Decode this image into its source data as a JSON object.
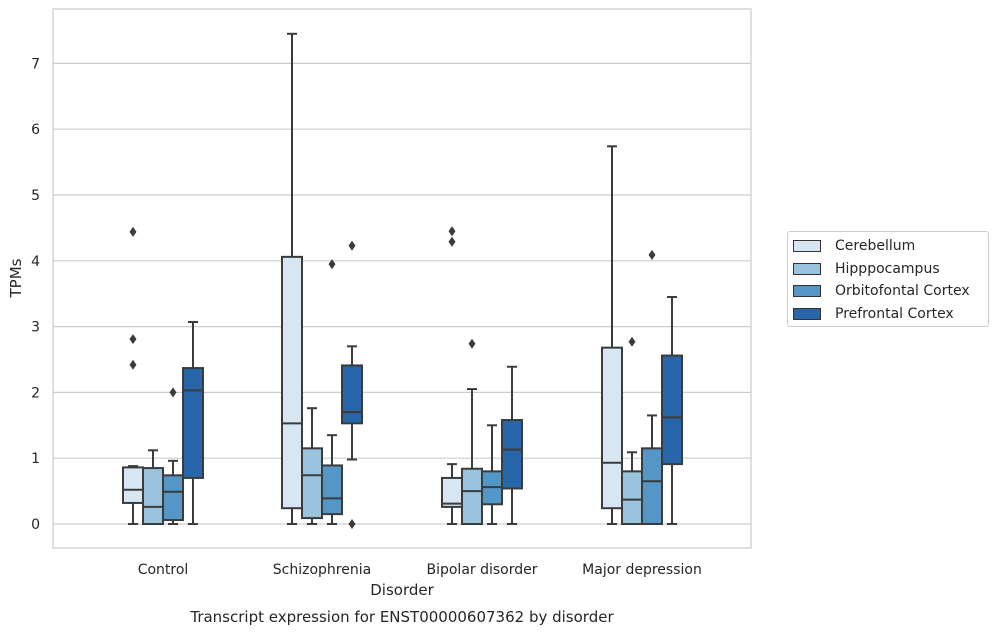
{
  "chart_data": {
    "type": "box",
    "title": "Transcript expression for ENST00000607362 by disorder",
    "xlabel": "Disorder",
    "ylabel": "TPMs",
    "ylim": [
      -0.35,
      7.8
    ],
    "yticks": [
      0,
      1,
      2,
      3,
      4,
      5,
      6,
      7
    ],
    "grid": true,
    "legend_position": "right",
    "categories": [
      "Control",
      "Schizophrenia",
      "Bipolar disorder",
      "Major depression"
    ],
    "series": [
      {
        "name": "Cerebellum",
        "color": "#d8e6f3",
        "boxes": [
          {
            "whisker_low": 0.0,
            "q1": 0.32,
            "median": 0.52,
            "q3": 0.86,
            "whisker_high": 0.88,
            "outliers": [
              4.44,
              2.81,
              2.42
            ]
          },
          {
            "whisker_low": 0.0,
            "q1": 0.24,
            "median": 1.53,
            "q3": 4.06,
            "whisker_high": 7.45,
            "outliers": []
          },
          {
            "whisker_low": 0.0,
            "q1": 0.26,
            "median": 0.31,
            "q3": 0.7,
            "whisker_high": 0.91,
            "outliers": [
              4.45,
              4.29
            ]
          },
          {
            "whisker_low": 0.0,
            "q1": 0.24,
            "median": 0.93,
            "q3": 2.68,
            "whisker_high": 5.74,
            "outliers": []
          }
        ]
      },
      {
        "name": "Hipppocampus",
        "color": "#9ac4de",
        "boxes": [
          {
            "whisker_low": 0.0,
            "q1": 0.0,
            "median": 0.26,
            "q3": 0.85,
            "whisker_high": 1.12,
            "outliers": []
          },
          {
            "whisker_low": 0.0,
            "q1": 0.09,
            "median": 0.74,
            "q3": 1.15,
            "whisker_high": 1.76,
            "outliers": []
          },
          {
            "whisker_low": 0.0,
            "q1": 0.0,
            "median": 0.5,
            "q3": 0.84,
            "whisker_high": 2.05,
            "outliers": [
              2.74
            ]
          },
          {
            "whisker_low": 0.0,
            "q1": 0.0,
            "median": 0.37,
            "q3": 0.8,
            "whisker_high": 1.09,
            "outliers": [
              2.77
            ]
          }
        ]
      },
      {
        "name": "Orbitofontal Cortex",
        "color": "#5497c7",
        "boxes": [
          {
            "whisker_low": 0.0,
            "q1": 0.06,
            "median": 0.49,
            "q3": 0.74,
            "whisker_high": 0.96,
            "outliers": [
              2.0
            ]
          },
          {
            "whisker_low": 0.0,
            "q1": 0.15,
            "median": 0.39,
            "q3": 0.89,
            "whisker_high": 1.35,
            "outliers": [
              3.95
            ]
          },
          {
            "whisker_low": 0.0,
            "q1": 0.3,
            "median": 0.56,
            "q3": 0.8,
            "whisker_high": 1.5,
            "outliers": []
          },
          {
            "whisker_low": 0.0,
            "q1": 0.0,
            "median": 0.65,
            "q3": 1.15,
            "whisker_high": 1.65,
            "outliers": [
              4.09
            ]
          }
        ]
      },
      {
        "name": "Prefrontal Cortex",
        "color": "#2767a9",
        "boxes": [
          {
            "whisker_low": 0.0,
            "q1": 0.7,
            "median": 2.03,
            "q3": 2.37,
            "whisker_high": 3.07,
            "outliers": []
          },
          {
            "whisker_low": 0.98,
            "q1": 1.53,
            "median": 1.7,
            "q3": 2.41,
            "whisker_high": 2.7,
            "outliers": [
              4.23,
              0.0
            ]
          },
          {
            "whisker_low": 0.0,
            "q1": 0.54,
            "median": 1.13,
            "q3": 1.58,
            "whisker_high": 2.39,
            "outliers": []
          },
          {
            "whisker_low": 0.0,
            "q1": 0.91,
            "median": 1.62,
            "q3": 2.56,
            "whisker_high": 3.45,
            "outliers": []
          }
        ]
      }
    ]
  }
}
